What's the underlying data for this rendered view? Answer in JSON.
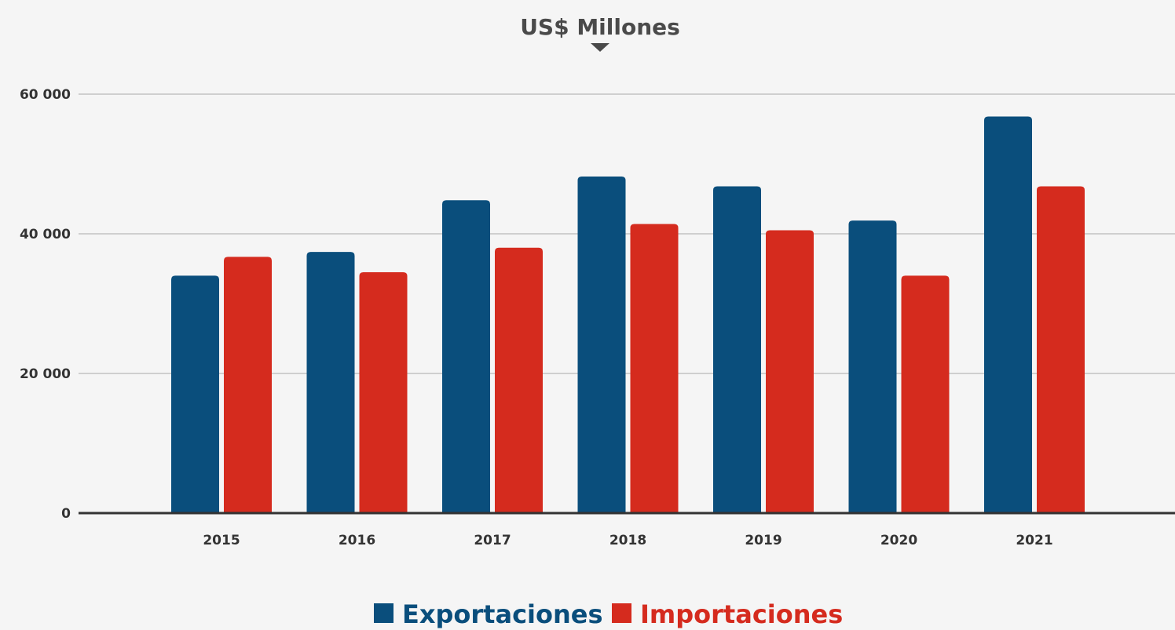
{
  "chart_data": {
    "type": "bar",
    "title": "US$ Millones",
    "categories": [
      "2015",
      "2016",
      "2017",
      "2018",
      "2019",
      "2020",
      "2021"
    ],
    "series": [
      {
        "name": "Exportaciones",
        "color": "#0a4e7c",
        "values": [
          34000,
          37400,
          44800,
          48200,
          46800,
          41900,
          56800
        ]
      },
      {
        "name": "Importaciones",
        "color": "#d52b1e",
        "values": [
          36700,
          34500,
          38000,
          41400,
          40500,
          34000,
          46800
        ]
      }
    ],
    "yticks": [
      "0",
      "20 000",
      "40 000",
      "60 000"
    ],
    "ylim": [
      0,
      60000
    ],
    "grid": true,
    "legend_position": "bottom-center"
  }
}
